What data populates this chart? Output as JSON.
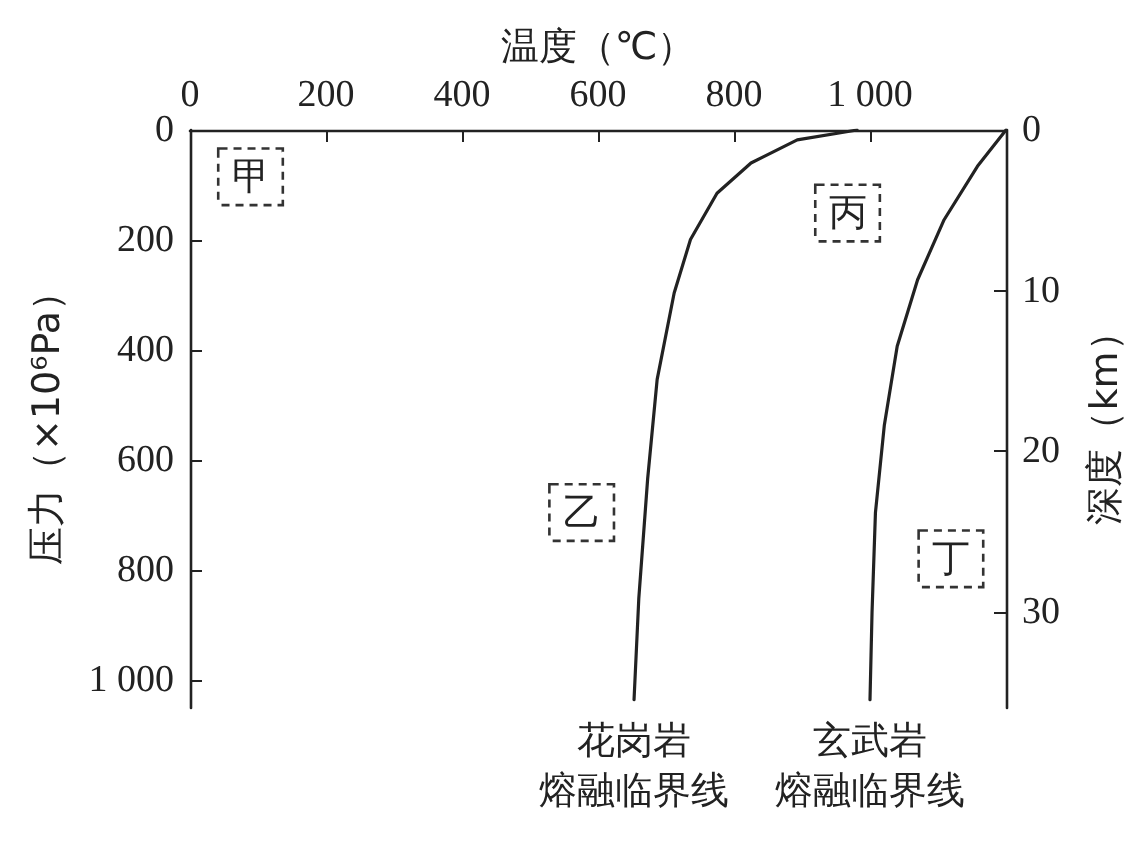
{
  "chart_data": {
    "type": "line",
    "xlabel": "温度（℃）",
    "ylabel": "压力（×10⁶Pa）",
    "y2label": "深度（km）",
    "xlim": [
      0,
      1200
    ],
    "xticks": [
      0,
      200,
      400,
      600,
      800,
      {
        "value": 1000,
        "label": "1 000"
      }
    ],
    "ylim": [
      1050,
      0
    ],
    "yticks": [
      0,
      200,
      400,
      600,
      800,
      {
        "value": 1000,
        "label": "1 000"
      }
    ],
    "y2lim": [
      36,
      0
    ],
    "y2ticks": [
      0,
      10,
      20,
      30
    ],
    "grid": false,
    "legend": false,
    "marker": "none",
    "line_style": "solid",
    "series": [
      {
        "name": "花岗岩熔融临界线",
        "color": "#222222",
        "x": [
          981,
          893,
          825,
          775,
          736,
          712,
          687,
          673,
          660,
          653
        ],
        "values": [
          0,
          18,
          60,
          115,
          199,
          296,
          453,
          634,
          851,
          1035
        ]
      },
      {
        "name": "玄武岩熔融临界线",
        "color": "#222222",
        "x": [
          1200,
          1158,
          1109,
          1070,
          1040,
          1021,
          1008,
          1003,
          1000
        ],
        "values": [
          0,
          66,
          163,
          272,
          393,
          537,
          695,
          876,
          1035
        ]
      }
    ],
    "annotations": [
      {
        "text": "甲",
        "x": 89,
        "y": 85
      },
      {
        "text": "乙",
        "x": 576,
        "y": 695
      },
      {
        "text": "丙",
        "x": 967,
        "y": 151
      },
      {
        "text": "丁",
        "x": 1119,
        "y": 779
      }
    ]
  }
}
